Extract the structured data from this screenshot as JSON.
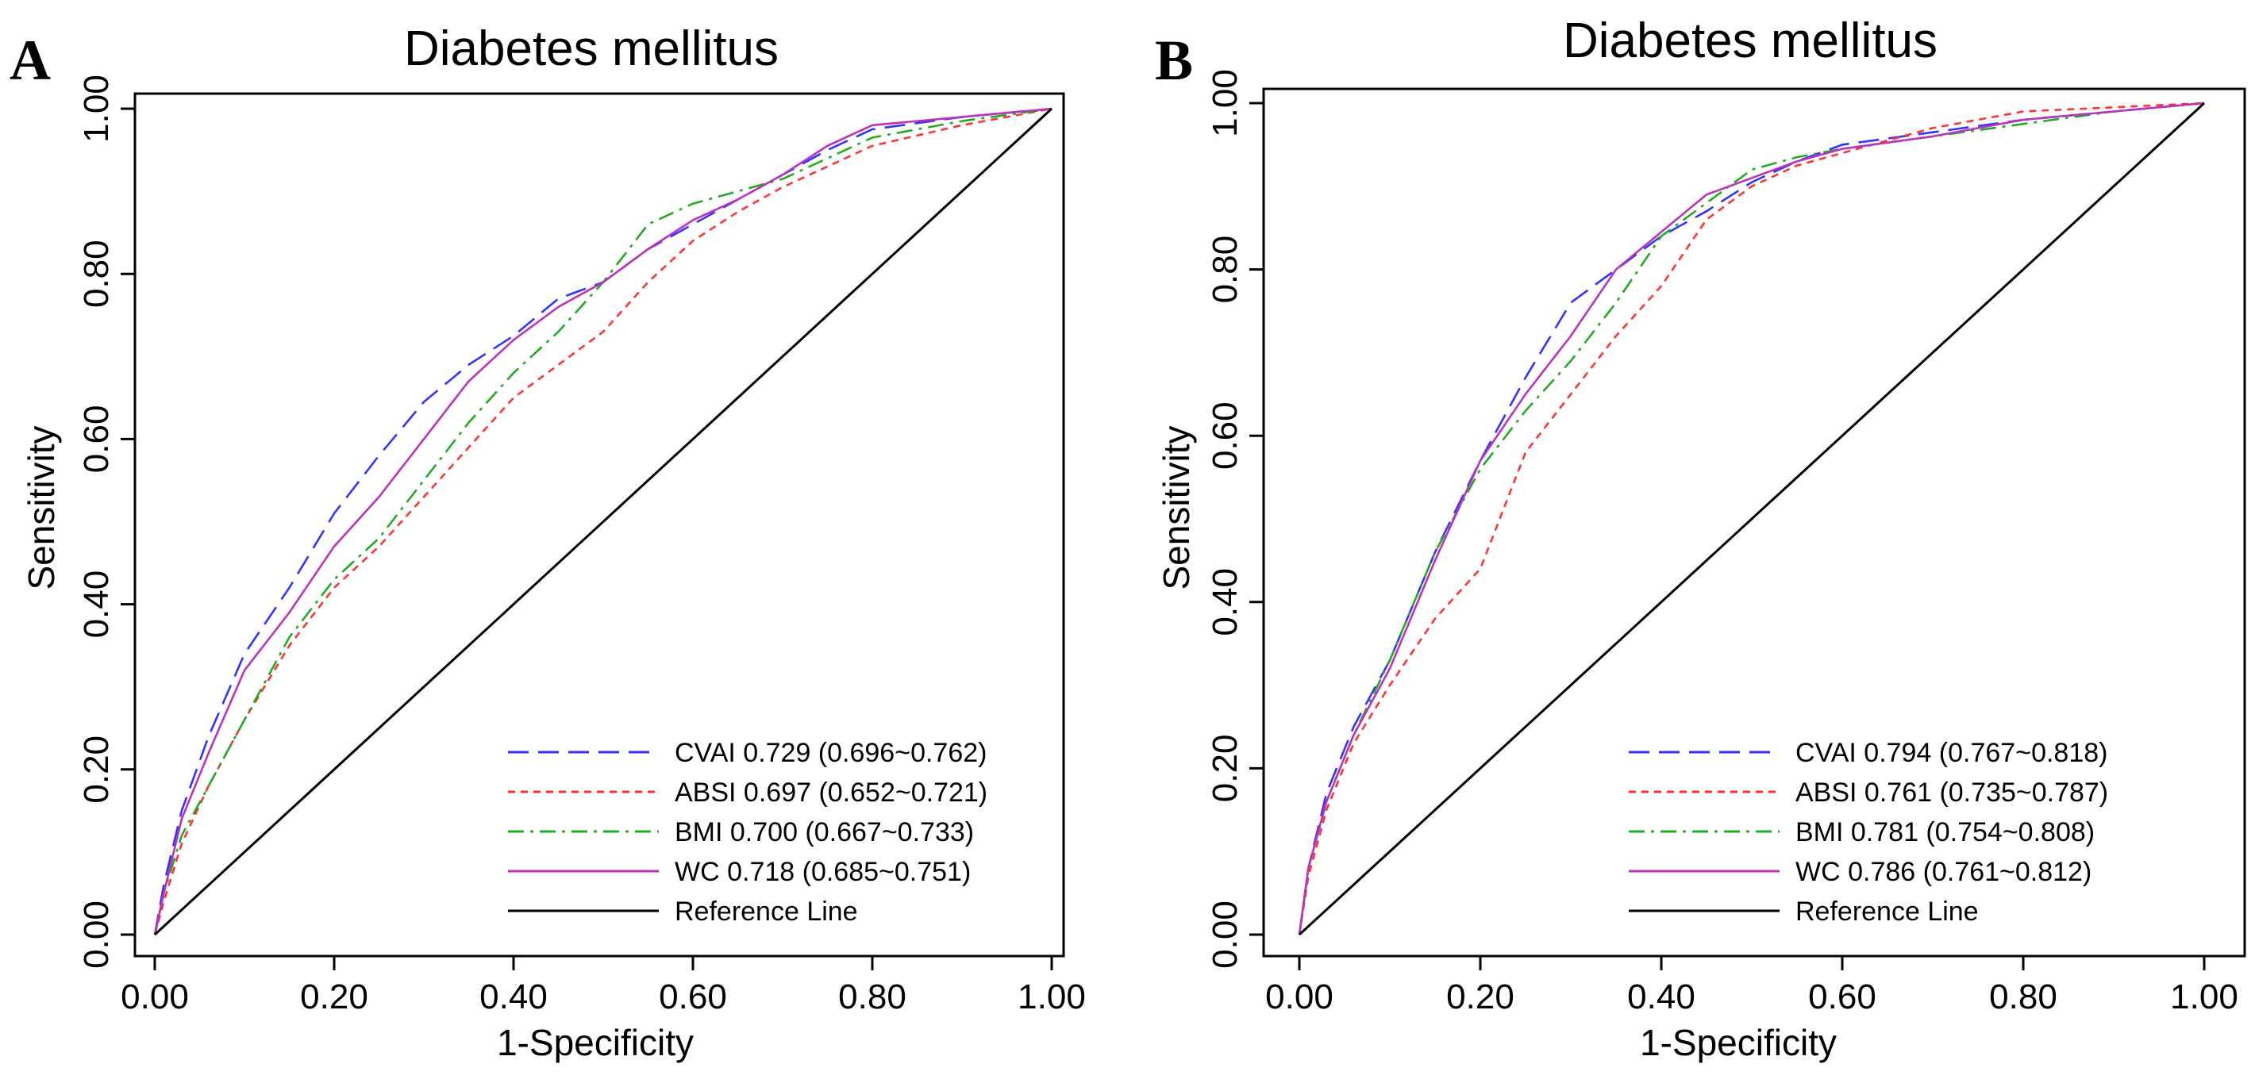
{
  "chart_data": [
    {
      "panel": "A",
      "type": "line",
      "title": "Diabetes mellitus",
      "xlabel": "1-Specificity",
      "ylabel": "Sensitivity",
      "xlim": [
        0,
        1
      ],
      "ylim": [
        0,
        1
      ],
      "xticks": [
        "0.00",
        "0.20",
        "0.40",
        "0.60",
        "0.80",
        "1.00"
      ],
      "yticks": [
        "0.00",
        "0.20",
        "0.40",
        "0.60",
        "0.80",
        "1.00"
      ],
      "legend_position": "bottom-right",
      "series": [
        {
          "name": "CVAI",
          "legend": "CVAI 0.729 (0.696~0.762)",
          "color": "#3333ff",
          "dash": "long-dash",
          "points": [
            [
              0,
              0
            ],
            [
              0.01,
              0.06
            ],
            [
              0.03,
              0.15
            ],
            [
              0.06,
              0.24
            ],
            [
              0.1,
              0.34
            ],
            [
              0.15,
              0.42
            ],
            [
              0.2,
              0.51
            ],
            [
              0.25,
              0.58
            ],
            [
              0.3,
              0.645
            ],
            [
              0.35,
              0.69
            ],
            [
              0.4,
              0.725
            ],
            [
              0.45,
              0.77
            ],
            [
              0.5,
              0.79
            ],
            [
              0.55,
              0.83
            ],
            [
              0.6,
              0.86
            ],
            [
              0.65,
              0.89
            ],
            [
              0.7,
              0.92
            ],
            [
              0.75,
              0.95
            ],
            [
              0.8,
              0.975
            ],
            [
              0.9,
              0.99
            ],
            [
              1,
              1
            ]
          ]
        },
        {
          "name": "ABSI",
          "legend": "ABSI 0.697 (0.652~0.721)",
          "color": "#ff3333",
          "dash": "short-dash",
          "points": [
            [
              0,
              0
            ],
            [
              0.01,
              0.04
            ],
            [
              0.03,
              0.11
            ],
            [
              0.06,
              0.18
            ],
            [
              0.1,
              0.26
            ],
            [
              0.15,
              0.35
            ],
            [
              0.2,
              0.42
            ],
            [
              0.25,
              0.47
            ],
            [
              0.3,
              0.53
            ],
            [
              0.35,
              0.59
            ],
            [
              0.4,
              0.65
            ],
            [
              0.45,
              0.69
            ],
            [
              0.5,
              0.73
            ],
            [
              0.55,
              0.79
            ],
            [
              0.6,
              0.84
            ],
            [
              0.65,
              0.875
            ],
            [
              0.7,
              0.905
            ],
            [
              0.75,
              0.93
            ],
            [
              0.8,
              0.955
            ],
            [
              0.9,
              0.98
            ],
            [
              1,
              1
            ]
          ]
        },
        {
          "name": "BMI",
          "legend": "BMI 0.700 (0.667~0.733)",
          "color": "#22aa22",
          "dash": "dash-dot",
          "points": [
            [
              0,
              0
            ],
            [
              0.01,
              0.05
            ],
            [
              0.03,
              0.12
            ],
            [
              0.06,
              0.18
            ],
            [
              0.1,
              0.26
            ],
            [
              0.15,
              0.36
            ],
            [
              0.2,
              0.43
            ],
            [
              0.25,
              0.48
            ],
            [
              0.3,
              0.55
            ],
            [
              0.35,
              0.62
            ],
            [
              0.4,
              0.68
            ],
            [
              0.45,
              0.73
            ],
            [
              0.5,
              0.79
            ],
            [
              0.55,
              0.86
            ],
            [
              0.6,
              0.885
            ],
            [
              0.65,
              0.9
            ],
            [
              0.7,
              0.915
            ],
            [
              0.75,
              0.94
            ],
            [
              0.8,
              0.965
            ],
            [
              0.9,
              0.985
            ],
            [
              1,
              1
            ]
          ]
        },
        {
          "name": "WC",
          "legend": "WC 0.718 (0.685~0.751)",
          "color": "#bb33bb",
          "dash": "solid",
          "points": [
            [
              0,
              0
            ],
            [
              0.01,
              0.05
            ],
            [
              0.03,
              0.14
            ],
            [
              0.06,
              0.22
            ],
            [
              0.1,
              0.32
            ],
            [
              0.15,
              0.39
            ],
            [
              0.2,
              0.47
            ],
            [
              0.25,
              0.53
            ],
            [
              0.3,
              0.6
            ],
            [
              0.35,
              0.67
            ],
            [
              0.4,
              0.72
            ],
            [
              0.45,
              0.76
            ],
            [
              0.5,
              0.79
            ],
            [
              0.55,
              0.83
            ],
            [
              0.6,
              0.865
            ],
            [
              0.65,
              0.89
            ],
            [
              0.7,
              0.92
            ],
            [
              0.75,
              0.955
            ],
            [
              0.8,
              0.98
            ],
            [
              0.9,
              0.99
            ],
            [
              1,
              1
            ]
          ]
        },
        {
          "name": "Reference Line",
          "legend": "Reference Line",
          "color": "#000000",
          "dash": "solid",
          "points": [
            [
              0,
              0
            ],
            [
              1,
              1
            ]
          ]
        }
      ]
    },
    {
      "panel": "B",
      "type": "line",
      "title": "Diabetes mellitus",
      "xlabel": "1-Specificity",
      "ylabel": "Sensitivity",
      "xlim": [
        0,
        1
      ],
      "ylim": [
        0,
        1
      ],
      "xticks": [
        "0.00",
        "0.20",
        "0.40",
        "0.60",
        "0.80",
        "1.00"
      ],
      "yticks": [
        "0.00",
        "0.20",
        "0.40",
        "0.60",
        "0.80",
        "1.00"
      ],
      "legend_position": "bottom-right",
      "series": [
        {
          "name": "CVAI",
          "legend": "CVAI 0.794 (0.767~0.818)",
          "color": "#3333ff",
          "dash": "long-dash",
          "points": [
            [
              0,
              0
            ],
            [
              0.01,
              0.08
            ],
            [
              0.03,
              0.17
            ],
            [
              0.06,
              0.25
            ],
            [
              0.1,
              0.33
            ],
            [
              0.15,
              0.46
            ],
            [
              0.2,
              0.57
            ],
            [
              0.25,
              0.67
            ],
            [
              0.3,
              0.76
            ],
            [
              0.35,
              0.8
            ],
            [
              0.4,
              0.84
            ],
            [
              0.45,
              0.87
            ],
            [
              0.5,
              0.905
            ],
            [
              0.55,
              0.93
            ],
            [
              0.6,
              0.95
            ],
            [
              0.7,
              0.965
            ],
            [
              0.8,
              0.98
            ],
            [
              0.9,
              0.99
            ],
            [
              1,
              1
            ]
          ]
        },
        {
          "name": "ABSI",
          "legend": "ABSI 0.761 (0.735~0.787)",
          "color": "#ff3333",
          "dash": "short-dash",
          "points": [
            [
              0,
              0
            ],
            [
              0.01,
              0.07
            ],
            [
              0.03,
              0.15
            ],
            [
              0.06,
              0.23
            ],
            [
              0.1,
              0.3
            ],
            [
              0.15,
              0.38
            ],
            [
              0.2,
              0.44
            ],
            [
              0.25,
              0.58
            ],
            [
              0.3,
              0.65
            ],
            [
              0.35,
              0.72
            ],
            [
              0.4,
              0.78
            ],
            [
              0.45,
              0.86
            ],
            [
              0.5,
              0.9
            ],
            [
              0.55,
              0.925
            ],
            [
              0.6,
              0.94
            ],
            [
              0.7,
              0.97
            ],
            [
              0.8,
              0.99
            ],
            [
              0.9,
              0.995
            ],
            [
              1,
              1
            ]
          ]
        },
        {
          "name": "BMI",
          "legend": "BMI 0.781 (0.754~0.808)",
          "color": "#22aa22",
          "dash": "dash-dot",
          "points": [
            [
              0,
              0
            ],
            [
              0.01,
              0.08
            ],
            [
              0.03,
              0.16
            ],
            [
              0.06,
              0.24
            ],
            [
              0.1,
              0.33
            ],
            [
              0.15,
              0.46
            ],
            [
              0.2,
              0.56
            ],
            [
              0.25,
              0.63
            ],
            [
              0.3,
              0.69
            ],
            [
              0.35,
              0.76
            ],
            [
              0.4,
              0.84
            ],
            [
              0.45,
              0.88
            ],
            [
              0.5,
              0.92
            ],
            [
              0.55,
              0.935
            ],
            [
              0.6,
              0.945
            ],
            [
              0.7,
              0.96
            ],
            [
              0.8,
              0.975
            ],
            [
              0.9,
              0.99
            ],
            [
              1,
              1
            ]
          ]
        },
        {
          "name": "WC",
          "legend": "WC 0.786 (0.761~0.812)",
          "color": "#bb33bb",
          "dash": "solid",
          "points": [
            [
              0,
              0
            ],
            [
              0.01,
              0.08
            ],
            [
              0.03,
              0.16
            ],
            [
              0.06,
              0.24
            ],
            [
              0.1,
              0.32
            ],
            [
              0.15,
              0.45
            ],
            [
              0.2,
              0.57
            ],
            [
              0.25,
              0.65
            ],
            [
              0.3,
              0.72
            ],
            [
              0.35,
              0.8
            ],
            [
              0.4,
              0.845
            ],
            [
              0.45,
              0.89
            ],
            [
              0.5,
              0.91
            ],
            [
              0.55,
              0.93
            ],
            [
              0.6,
              0.945
            ],
            [
              0.7,
              0.96
            ],
            [
              0.8,
              0.98
            ],
            [
              0.9,
              0.99
            ],
            [
              1,
              1
            ]
          ]
        },
        {
          "name": "Reference Line",
          "legend": "Reference Line",
          "color": "#000000",
          "dash": "solid",
          "points": [
            [
              0,
              0
            ],
            [
              1,
              1
            ]
          ]
        }
      ]
    }
  ]
}
